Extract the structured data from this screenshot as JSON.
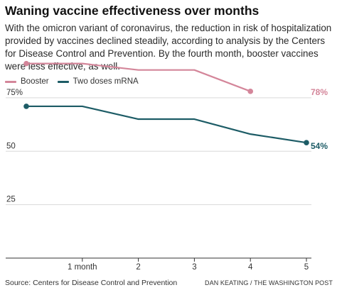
{
  "title": "Waning vaccine effectiveness over months",
  "subtitle": "With the omicron variant of coronavirus, the reduction in risk of hospitalization provided by vaccines declined steadily, according to analysis by the Centers for Disease Control and Prevention. By the fourth month, booster vaccines were less effective, as well.",
  "source": "Source: Centers for Disease Control and Prevention",
  "credit": "DAN KEATING / THE WASHINGTON POST",
  "colors": {
    "booster": "#d4869a",
    "two_doses": "#1d5c66",
    "grid": "#d9d9d9",
    "axis": "#333333"
  },
  "chart_data": {
    "type": "line",
    "title": "Waning vaccine effectiveness over months",
    "xlabel": "",
    "ylabel": "",
    "x": [
      0,
      1,
      2,
      3,
      4,
      5
    ],
    "x_tick_values": [
      1,
      2,
      3,
      4,
      5
    ],
    "x_tick_labels": [
      "1 month",
      "2",
      "3",
      "4",
      "5"
    ],
    "xlim": [
      0,
      5
    ],
    "ylim": [
      0,
      100
    ],
    "y_tick_values": [
      75,
      50,
      25
    ],
    "y_tick_labels": [
      "75%",
      "50",
      "25"
    ],
    "grid": true,
    "legend_position": "top-left",
    "series": [
      {
        "name": "Booster",
        "color_key": "booster",
        "x": [
          0,
          1,
          2,
          3,
          4
        ],
        "values": [
          91,
          91,
          88,
          88,
          78
        ],
        "end_label": "78%"
      },
      {
        "name": "Two doses mRNA",
        "color_key": "two_doses",
        "x": [
          0,
          1,
          2,
          3,
          4,
          5
        ],
        "values": [
          71,
          71,
          65,
          65,
          58,
          54
        ],
        "end_label": "54%"
      }
    ]
  }
}
